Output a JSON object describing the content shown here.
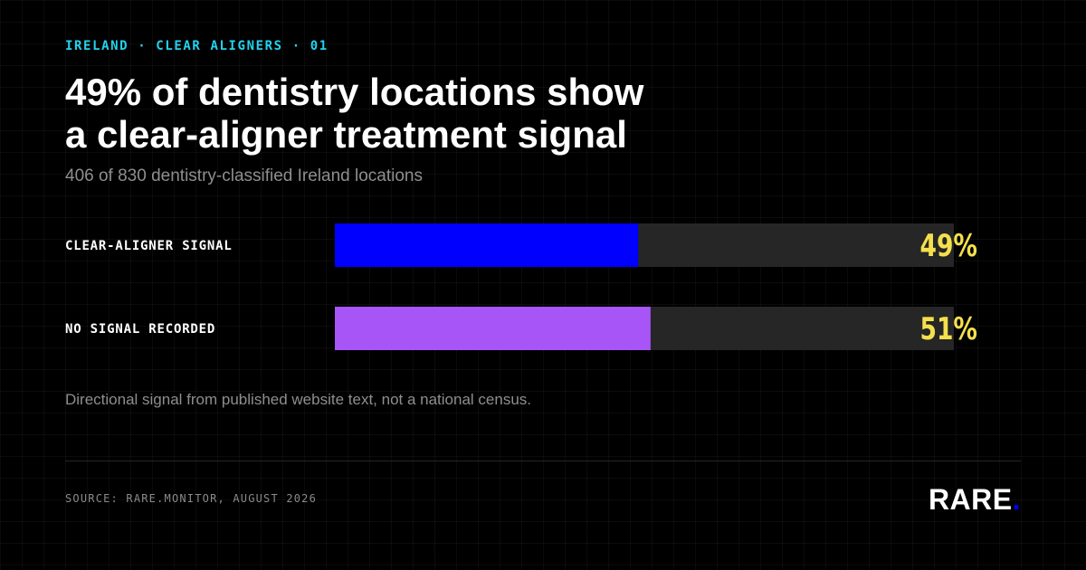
{
  "header": {
    "eyebrow": "IRELAND · CLEAR ALIGNERS · 01",
    "title_line1": "49% of dentistry locations show",
    "title_line2": "a clear-aligner treatment signal",
    "subtitle": "406 of 830 dentistry-classified Ireland locations"
  },
  "chart_data": {
    "type": "bar",
    "orientation": "horizontal",
    "categories": [
      "CLEAR-ALIGNER SIGNAL",
      "NO SIGNAL RECORDED"
    ],
    "values": [
      49,
      51
    ],
    "value_labels": [
      "49%",
      "51%"
    ],
    "unit": "%",
    "xlim": [
      0,
      100
    ],
    "colors": [
      "#0000ff",
      "#a855f7"
    ],
    "track_color": "#262626",
    "value_label_color": "#f4e04d",
    "label_color": "#ffffff",
    "grid": false,
    "legend": "none"
  },
  "note": "Directional signal from published website text, not a national census.",
  "footer": {
    "source": "SOURCE: RARE.MONITOR, AUGUST 2026",
    "brand_word": "RARE",
    "brand_dot": "."
  }
}
